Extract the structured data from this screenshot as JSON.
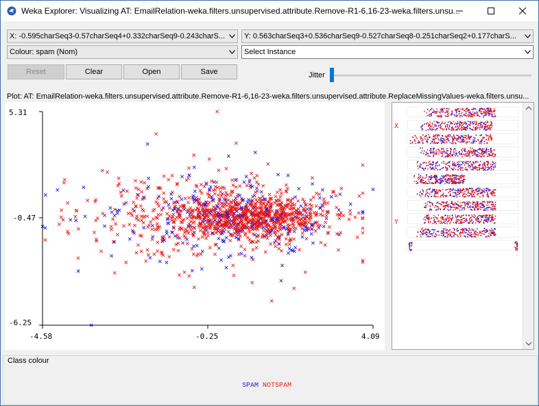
{
  "window": {
    "title": "Weka Explorer: Visualizing AT: EmailRelation-weka.filters.unsupervised.attribute.Remove-R1-6,16-23-weka.filters.unsu..."
  },
  "controls": {
    "x_axis": "X: -0.595charSeq3-0.57charSeq4+0.332charSeq9-0.243charS...",
    "y_axis": "Y: 0.563charSeq3+0.536charSeq9-0.527charSeq8-0.251charSeq2+0.177charS...",
    "colour": "Colour: spam (Nom)",
    "select_instance": "Select Instance",
    "buttons": {
      "reset": "Reset",
      "clear": "Clear",
      "open": "Open",
      "save": "Save"
    },
    "jitter_label": "Jitter",
    "jitter_value": 0
  },
  "plot": {
    "title": "Plot: AT: EmailRelation-weka.filters.unsupervised.attribute.Remove-R1-6,16-23-weka.filters.unsupervised.attribute.ReplaceMissingValues-weka.filters.unsu...",
    "y_max_label": "5.31",
    "y_mid_label": "-0.47",
    "y_min_label": "-6.25",
    "x_min_label": "-4.58",
    "x_mid_label": "-0.25",
    "x_max_label": "4.09",
    "colors": {
      "spam": "#1a1ae6",
      "notspam": "#e61a1a"
    }
  },
  "attribute_panel": {
    "x_marker": "X",
    "y_marker": "Y"
  },
  "class_colour": {
    "label": "Class colour",
    "spam": "SPAM",
    "notspam": "NOTSPAM"
  },
  "chart_data": {
    "type": "scatter",
    "title": "",
    "xlabel": "",
    "ylabel": "",
    "xlim": [
      -4.58,
      4.09
    ],
    "ylim": [
      -6.25,
      5.31
    ],
    "x_ticks": [
      "-4.58",
      "-0.25",
      "4.09"
    ],
    "y_ticks": [
      "5.31",
      "-0.47",
      "-6.25"
    ],
    "series": [
      {
        "name": "SPAM",
        "marker": "x",
        "color": "#1a1ae6",
        "points": [
          [
            -4.58,
            -0.9
          ],
          [
            -4.5,
            0.8
          ],
          [
            -3.3,
            -6.25
          ],
          [
            -2.8,
            0.1
          ],
          [
            -2.2,
            -1.2
          ],
          [
            -1.8,
            1.7
          ],
          [
            -1.5,
            -2.8
          ],
          [
            -1.2,
            0.6
          ],
          [
            -0.9,
            -1.8
          ],
          [
            -0.6,
            2.3
          ],
          [
            -0.4,
            -3.2
          ],
          [
            -0.2,
            1.1
          ],
          [
            0.1,
            -0.3
          ],
          [
            0.3,
            2.9
          ],
          [
            0.5,
            -1.5
          ],
          [
            0.8,
            0.4
          ],
          [
            1.0,
            3.1
          ],
          [
            1.3,
            -0.6
          ],
          [
            1.6,
            1.9
          ],
          [
            1.9,
            -2.1
          ],
          [
            2.2,
            0.2
          ],
          [
            2.5,
            1.4
          ],
          [
            2.8,
            -0.9
          ],
          [
            3.0,
            0.7
          ],
          [
            3.5,
            0.3
          ],
          [
            4.09,
            1.1
          ]
        ]
      },
      {
        "name": "NOTSPAM",
        "marker": "x",
        "color": "#e61a1a",
        "points": [
          [
            -3.9,
            -1.3
          ],
          [
            -3.4,
            0.5
          ],
          [
            -3.0,
            -0.2
          ],
          [
            -2.6,
            1.3
          ],
          [
            -2.3,
            -0.8
          ],
          [
            -2.0,
            0.2
          ],
          [
            -1.7,
            -1.6
          ],
          [
            -1.4,
            0.9
          ],
          [
            -1.1,
            -0.5
          ],
          [
            -0.8,
            1.6
          ],
          [
            -0.5,
            -2.4
          ],
          [
            -0.2,
            0.0
          ],
          [
            0.0,
            5.31
          ],
          [
            0.2,
            -0.7
          ],
          [
            0.4,
            1.0
          ],
          [
            0.6,
            -1.1
          ],
          [
            0.9,
            0.3
          ],
          [
            1.1,
            -0.4
          ],
          [
            1.4,
            0.6
          ],
          [
            1.7,
            -0.2
          ],
          [
            2.0,
            0.1
          ],
          [
            2.3,
            -0.5
          ],
          [
            2.6,
            0.2
          ],
          [
            2.9,
            -0.1
          ],
          [
            -0.6,
            -4.2
          ],
          [
            -1.6,
            4.1
          ],
          [
            0.5,
            3.6
          ]
        ]
      }
    ]
  }
}
